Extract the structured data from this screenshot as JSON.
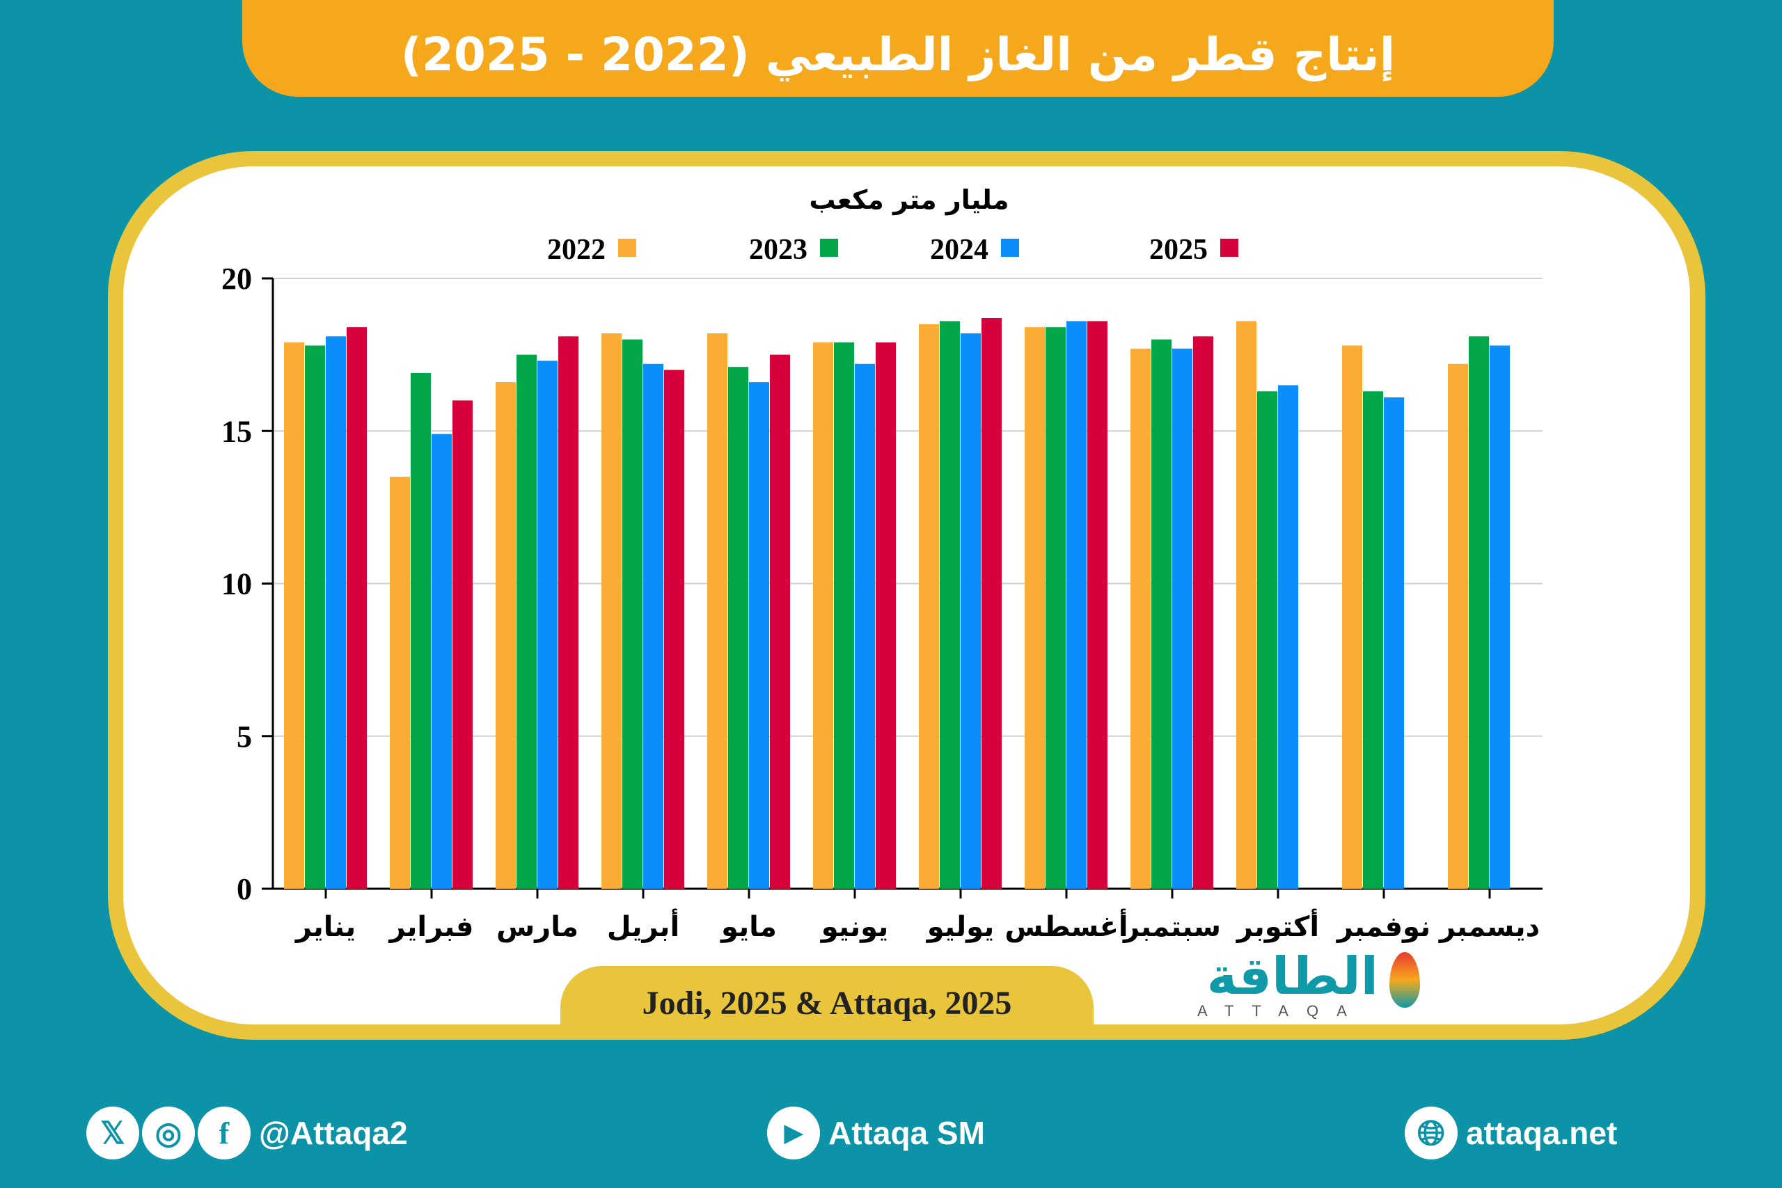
{
  "title": "إنتاج قطر من الغاز الطبيعي (2022 - 2025)",
  "source": "Jodi, 2025 & Attaqa, 2025",
  "logo": {
    "arabic": "الطاقة",
    "latin": "ATTAQA"
  },
  "footer": {
    "handle": "@Attaqa2",
    "youtube": "Attaqa SM",
    "website": "attaqa.net",
    "social_icons": [
      "x-icon",
      "instagram-icon",
      "facebook-icon"
    ]
  },
  "chart_data": {
    "type": "bar",
    "ylabel": "مليار متر مكعب",
    "ylim": [
      0,
      20
    ],
    "yticks": [
      0,
      5,
      10,
      15,
      20
    ],
    "grid": true,
    "legend_position": "top",
    "categories": [
      "يناير",
      "فبراير",
      "مارس",
      "أبريل",
      "مايو",
      "يونيو",
      "يوليو",
      "أغسطس",
      "سبتمبر",
      "أكتوبر",
      "نوفمبر",
      "ديسمبر"
    ],
    "series": [
      {
        "name": "2022",
        "color": "#fbac34",
        "values": [
          17.9,
          13.5,
          16.6,
          18.2,
          18.2,
          17.9,
          18.5,
          18.4,
          17.7,
          18.6,
          17.8,
          17.2
        ]
      },
      {
        "name": "2023",
        "color": "#04a64a",
        "values": [
          17.8,
          16.9,
          17.5,
          18.0,
          17.1,
          17.9,
          18.6,
          18.4,
          18.0,
          16.3,
          16.3,
          18.1
        ]
      },
      {
        "name": "2024",
        "color": "#0a8ffa",
        "values": [
          18.1,
          14.9,
          17.3,
          17.2,
          16.6,
          17.2,
          18.2,
          18.6,
          17.7,
          16.5,
          16.1,
          17.8
        ]
      },
      {
        "name": "2025",
        "color": "#d6003a",
        "values": [
          18.4,
          16.0,
          18.1,
          17.0,
          17.5,
          17.9,
          18.7,
          18.6,
          18.1,
          null,
          null,
          null
        ]
      }
    ]
  }
}
